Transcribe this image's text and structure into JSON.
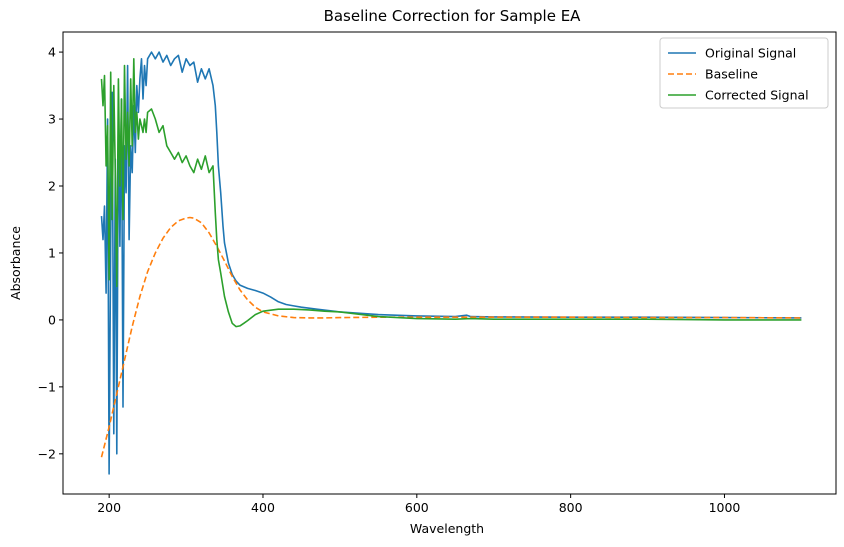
{
  "chart_data": {
    "type": "line",
    "title": "Baseline Correction for Sample EA",
    "xlabel": "Wavelength",
    "ylabel": "Absorbance",
    "xlim": [
      140,
      1145
    ],
    "ylim": [
      -2.6,
      4.3
    ],
    "xticks": [
      200,
      400,
      600,
      800,
      1000
    ],
    "xtick_labels": [
      "200",
      "400",
      "600",
      "800",
      "1000"
    ],
    "yticks": [
      -2,
      -1,
      0,
      1,
      2,
      3,
      4
    ],
    "ytick_labels": [
      "−2",
      "−1",
      "0",
      "1",
      "2",
      "3",
      "4"
    ],
    "grid": false,
    "legend_position": "upper right",
    "series": [
      {
        "name": "Original Signal",
        "color": "#1f77b4",
        "dash": "solid",
        "x": [
          190,
          192,
          194,
          196,
          198,
          200,
          202,
          204,
          206,
          208,
          210,
          212,
          214,
          216,
          218,
          220,
          222,
          224,
          226,
          228,
          230,
          232,
          234,
          236,
          238,
          240,
          242,
          244,
          246,
          248,
          250,
          255,
          260,
          265,
          270,
          275,
          280,
          285,
          290,
          295,
          300,
          305,
          310,
          315,
          320,
          325,
          330,
          335,
          338,
          340,
          342,
          345,
          348,
          350,
          355,
          360,
          365,
          370,
          380,
          390,
          400,
          410,
          420,
          430,
          440,
          450,
          470,
          500,
          550,
          600,
          650,
          665,
          670,
          700,
          800,
          900,
          1000,
          1100
        ],
        "y": [
          1.55,
          1.2,
          1.7,
          0.4,
          3.0,
          -2.3,
          1.2,
          3.4,
          -1.7,
          2.4,
          -2.0,
          3.2,
          1.1,
          3.3,
          -1.3,
          2.6,
          1.9,
          3.8,
          1.2,
          2.6,
          2.2,
          3.2,
          2.5,
          3.5,
          3.1,
          3.6,
          3.9,
          3.3,
          3.8,
          3.5,
          3.9,
          4.0,
          3.9,
          4.0,
          3.85,
          3.95,
          3.8,
          3.9,
          3.95,
          3.7,
          3.9,
          3.8,
          3.85,
          3.55,
          3.75,
          3.6,
          3.75,
          3.5,
          3.2,
          2.8,
          2.3,
          1.9,
          1.4,
          1.15,
          0.85,
          0.68,
          0.58,
          0.52,
          0.47,
          0.44,
          0.4,
          0.34,
          0.27,
          0.23,
          0.21,
          0.19,
          0.16,
          0.12,
          0.08,
          0.06,
          0.05,
          0.07,
          0.05,
          0.045,
          0.04,
          0.04,
          0.035,
          0.03
        ]
      },
      {
        "name": "Baseline",
        "color": "#ff7f0e",
        "dash": "dashed",
        "x": [
          190,
          200,
          210,
          220,
          230,
          240,
          250,
          260,
          270,
          280,
          290,
          300,
          305,
          310,
          320,
          330,
          340,
          350,
          360,
          370,
          380,
          390,
          400,
          420,
          440,
          460,
          480,
          500,
          550,
          600,
          650,
          700,
          800,
          900,
          1000,
          1100
        ],
        "y": [
          -2.05,
          -1.6,
          -1.1,
          -0.6,
          -0.1,
          0.35,
          0.72,
          1.0,
          1.22,
          1.38,
          1.48,
          1.52,
          1.53,
          1.52,
          1.45,
          1.3,
          1.1,
          0.88,
          0.65,
          0.45,
          0.3,
          0.19,
          0.12,
          0.06,
          0.035,
          0.03,
          0.03,
          0.035,
          0.04,
          0.04,
          0.04,
          0.04,
          0.04,
          0.035,
          0.035,
          0.03
        ]
      },
      {
        "name": "Corrected Signal",
        "color": "#2ca02c",
        "dash": "solid",
        "x": [
          190,
          192,
          194,
          196,
          198,
          200,
          202,
          204,
          206,
          208,
          210,
          212,
          214,
          216,
          218,
          220,
          222,
          224,
          226,
          228,
          230,
          232,
          234,
          236,
          238,
          240,
          242,
          244,
          246,
          248,
          250,
          255,
          260,
          265,
          270,
          275,
          280,
          285,
          290,
          295,
          300,
          305,
          310,
          315,
          320,
          325,
          330,
          335,
          338,
          340,
          342,
          345,
          350,
          355,
          360,
          365,
          370,
          375,
          380,
          390,
          400,
          420,
          440,
          460,
          480,
          500,
          550,
          600,
          650,
          670,
          700,
          800,
          900,
          1000,
          1100
        ],
        "y": [
          3.6,
          3.2,
          3.65,
          2.3,
          2.9,
          0.6,
          3.7,
          1.5,
          3.5,
          2.2,
          0.5,
          3.6,
          2.0,
          3.3,
          1.5,
          3.8,
          2.4,
          3.1,
          2.3,
          3.6,
          2.6,
          3.9,
          2.8,
          3.1,
          2.7,
          3.0,
          2.9,
          2.8,
          3.0,
          2.8,
          3.1,
          3.15,
          3.0,
          2.8,
          2.9,
          2.6,
          2.5,
          2.4,
          2.5,
          2.35,
          2.45,
          2.3,
          2.2,
          2.4,
          2.25,
          2.45,
          2.2,
          2.3,
          1.6,
          1.2,
          0.9,
          0.7,
          0.35,
          0.12,
          -0.05,
          -0.1,
          -0.09,
          -0.05,
          -0.01,
          0.08,
          0.13,
          0.16,
          0.16,
          0.15,
          0.13,
          0.12,
          0.05,
          0.02,
          0.01,
          0.02,
          0.01,
          0.01,
          0.01,
          0.0,
          0.0
        ]
      }
    ]
  }
}
